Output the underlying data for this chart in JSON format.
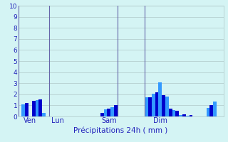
{
  "xlabel": "Précipitations 24h ( mm )",
  "ylim": [
    0,
    10
  ],
  "yticks": [
    0,
    1,
    2,
    3,
    4,
    5,
    6,
    7,
    8,
    9,
    10
  ],
  "background_color": "#d4f4f4",
  "bar_color_dark": "#0000cc",
  "bar_color_light": "#3399ff",
  "grid_color": "#b0c8c8",
  "vline_color": "#6666aa",
  "xlabel_color": "#2222bb",
  "tick_color": "#2222bb",
  "bar_values": [
    0,
    1.1,
    1.25,
    0,
    1.4,
    1.5,
    1.55,
    0.3,
    0,
    0,
    0,
    0,
    0,
    0,
    0,
    0,
    0,
    0,
    0,
    0,
    0,
    0,
    0,
    0,
    0.35,
    0.65,
    0.7,
    0.85,
    1.0,
    0,
    0,
    0,
    0,
    0,
    0,
    0,
    0,
    1.7,
    1.75,
    2.05,
    2.2,
    3.1,
    1.95,
    1.8,
    0.7,
    0.6,
    0.5,
    0.15,
    0.2,
    0.05,
    0.1,
    0,
    0,
    0,
    0,
    0.8,
    1.0,
    1.35,
    0,
    0
  ],
  "vline_positions": [
    0,
    9,
    29,
    37
  ],
  "xtick_positions": [
    3,
    11,
    26,
    41
  ],
  "xtick_labels": [
    "Ven",
    "Lun",
    "Sam",
    "Dim"
  ],
  "n_bars": 60
}
